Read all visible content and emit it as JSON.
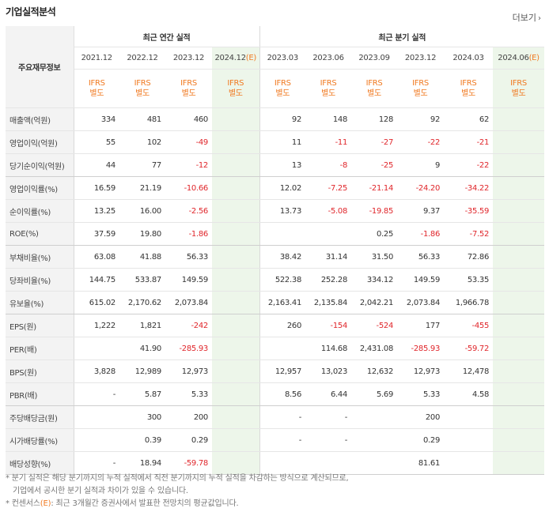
{
  "title": "기업실적분석",
  "more_label": "더보기",
  "corner_label": "주요재무정보",
  "groups": {
    "annual": "최근 연간 실적",
    "quarterly": "최근 분기 실적"
  },
  "periods": [
    {
      "label": "2021.12",
      "est": false
    },
    {
      "label": "2022.12",
      "est": false
    },
    {
      "label": "2023.12",
      "est": false
    },
    {
      "label": "2024.12",
      "est": true
    },
    {
      "label": "2023.03",
      "est": false
    },
    {
      "label": "2023.06",
      "est": false
    },
    {
      "label": "2023.09",
      "est": false
    },
    {
      "label": "2023.12",
      "est": false
    },
    {
      "label": "2024.03",
      "est": false
    },
    {
      "label": "2024.06",
      "est": true
    }
  ],
  "est_mark": "(E)",
  "ifrs_label": "IFRS",
  "ifrs_sub": "별도",
  "rows": [
    {
      "label": "매출액(억원)",
      "values": [
        "334",
        "481",
        "460",
        "",
        "92",
        "148",
        "128",
        "92",
        "62",
        ""
      ]
    },
    {
      "label": "영업이익(억원)",
      "values": [
        "55",
        "102",
        "-49",
        "",
        "11",
        "-11",
        "-27",
        "-22",
        "-21",
        ""
      ]
    },
    {
      "label": "당기순이익(억원)",
      "values": [
        "44",
        "77",
        "-12",
        "",
        "13",
        "-8",
        "-25",
        "9",
        "-22",
        ""
      ]
    },
    {
      "label": "영업이익률(%)",
      "values": [
        "16.59",
        "21.19",
        "-10.66",
        "",
        "12.02",
        "-7.25",
        "-21.14",
        "-24.20",
        "-34.22",
        ""
      ]
    },
    {
      "label": "순이익률(%)",
      "values": [
        "13.25",
        "16.00",
        "-2.56",
        "",
        "13.73",
        "-5.08",
        "-19.85",
        "9.37",
        "-35.59",
        ""
      ]
    },
    {
      "label": "ROE(%)",
      "values": [
        "37.59",
        "19.80",
        "-1.86",
        "",
        "",
        "",
        "0.25",
        "-1.86",
        "-7.52",
        ""
      ]
    },
    {
      "label": "부채비율(%)",
      "values": [
        "63.08",
        "41.88",
        "56.33",
        "",
        "38.42",
        "31.14",
        "31.50",
        "56.33",
        "72.86",
        ""
      ]
    },
    {
      "label": "당좌비율(%)",
      "values": [
        "144.75",
        "533.87",
        "149.59",
        "",
        "522.38",
        "252.28",
        "334.12",
        "149.59",
        "53.35",
        ""
      ]
    },
    {
      "label": "유보율(%)",
      "values": [
        "615.02",
        "2,170.62",
        "2,073.84",
        "",
        "2,163.41",
        "2,135.84",
        "2,042.21",
        "2,073.84",
        "1,966.78",
        ""
      ]
    },
    {
      "label": "EPS(원)",
      "values": [
        "1,222",
        "1,821",
        "-242",
        "",
        "260",
        "-154",
        "-524",
        "177",
        "-455",
        ""
      ]
    },
    {
      "label": "PER(배)",
      "values": [
        "",
        "41.90",
        "-285.93",
        "",
        "",
        "114.68",
        "2,431.08",
        "-285.93",
        "-59.72",
        ""
      ]
    },
    {
      "label": "BPS(원)",
      "values": [
        "3,828",
        "12,989",
        "12,973",
        "",
        "12,957",
        "13,023",
        "12,632",
        "12,973",
        "12,478",
        ""
      ]
    },
    {
      "label": "PBR(배)",
      "values": [
        "-",
        "5.87",
        "5.33",
        "",
        "8.56",
        "6.44",
        "5.69",
        "5.33",
        "4.58",
        ""
      ]
    },
    {
      "label": "주당배당금(원)",
      "values": [
        "",
        "300",
        "200",
        "",
        "-",
        "-",
        "",
        "200",
        "",
        ""
      ]
    },
    {
      "label": "시가배당률(%)",
      "values": [
        "",
        "0.39",
        "0.29",
        "",
        "-",
        "-",
        "",
        "0.29",
        "",
        ""
      ]
    },
    {
      "label": "배당성향(%)",
      "values": [
        "-",
        "18.94",
        "-59.78",
        "",
        "",
        "",
        "",
        "81.61",
        "",
        ""
      ]
    }
  ],
  "notes": {
    "line1": "* 분기 실적은 해당 분기까지의 누적 실적에서 직전 분기까지의 누적 실적을 차감하는 방식으로 계산되므로,",
    "line2": "기업에서 공시한 분기 실적과 차이가 있을 수 있습니다.",
    "line3_prefix": "* 컨센서스",
    "line3_mark": "(E)",
    "line3_rest": ": 최근 3개월간 증권사에서 발표한 전망치의 평균값입니다."
  },
  "colors": {
    "accent": "#f07a22",
    "negative": "#e0262b",
    "estimate_bg": "#edf6ea",
    "label_bg": "#f3f3f3"
  }
}
